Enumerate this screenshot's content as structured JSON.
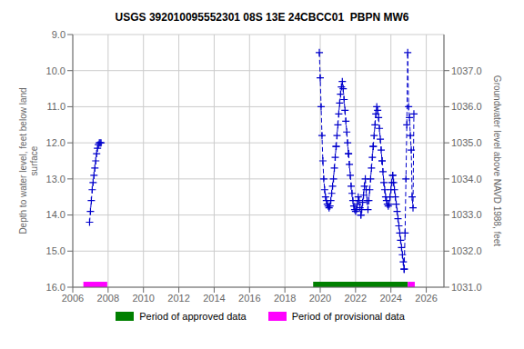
{
  "chart_data": {
    "type": "line",
    "title": "USGS 392010095552301 08S 13E 24CBCC01  PBPN MW6",
    "y_label": "Depth to water level, feet below land\nsurface",
    "y2_label": "Groundwater level above NAVD 1988, feet",
    "xlim": [
      2006,
      2027
    ],
    "xticks": [
      2006,
      2008,
      2010,
      2012,
      2014,
      2016,
      2018,
      2020,
      2022,
      2024,
      2026
    ],
    "ylim": [
      16.0,
      9.0
    ],
    "yticks": [
      {
        "value": 9.0,
        "label": "9.0"
      },
      {
        "value": 10.0,
        "label": "10.0"
      },
      {
        "value": 11.0,
        "label": "11.0"
      },
      {
        "value": 12.0,
        "label": "12.0"
      },
      {
        "value": 13.0,
        "label": "13.0"
      },
      {
        "value": 14.0,
        "label": "14.0"
      },
      {
        "value": 15.0,
        "label": "15.0"
      },
      {
        "value": 16.0,
        "label": "16.0"
      }
    ],
    "y2lim": [
      1031.0,
      1038.0
    ],
    "y2ticks": [
      {
        "value": 1031.0,
        "label": "1031.0"
      },
      {
        "value": 1032.0,
        "label": "1032.0"
      },
      {
        "value": 1033.0,
        "label": "1033.0"
      },
      {
        "value": 1034.0,
        "label": "1034.0"
      },
      {
        "value": 1035.0,
        "label": "1035.0"
      },
      {
        "value": 1036.0,
        "label": "1036.0"
      },
      {
        "value": 1037.0,
        "label": "1037.0"
      }
    ],
    "grid": true,
    "series": [
      {
        "color": "#0000cc",
        "line_style": "dashed",
        "marker": "plus",
        "x": [
          2006.95,
          2007.0,
          2007.05,
          2007.1,
          2007.15,
          2007.2,
          2007.25,
          2007.3,
          2007.35,
          2007.4,
          2007.45,
          2007.5,
          2007.55,
          2007.6
        ],
        "values": [
          14.2,
          13.9,
          13.6,
          13.3,
          13.1,
          12.9,
          12.7,
          12.5,
          12.3,
          12.15,
          12.05,
          12.0,
          12.0,
          12.0
        ]
      },
      {
        "color": "#0000cc",
        "line_style": "dashed",
        "marker": "plus",
        "x": [
          2019.95,
          2020.0,
          2020.05,
          2020.1,
          2020.15,
          2020.2,
          2020.25,
          2020.3,
          2020.35,
          2020.4,
          2020.45,
          2020.5,
          2020.55,
          2020.6,
          2020.65,
          2020.7,
          2020.75,
          2020.8,
          2020.85,
          2020.9
        ],
        "values": [
          9.5,
          10.2,
          11.0,
          11.8,
          12.5,
          13.0,
          13.3,
          13.5,
          13.6,
          13.7,
          13.75,
          13.8,
          13.75,
          13.6,
          13.4,
          13.2,
          13.0,
          12.7,
          12.4,
          12.1
        ]
      },
      {
        "color": "#0000cc",
        "line_style": "dashed",
        "marker": "plus",
        "x": [
          2020.9,
          2020.95,
          2021.0,
          2021.05,
          2021.1,
          2021.15,
          2021.2,
          2021.25,
          2021.3,
          2021.35,
          2021.4,
          2021.45,
          2021.5,
          2021.55,
          2021.6
        ],
        "values": [
          12.1,
          11.8,
          11.5,
          11.2,
          10.9,
          10.65,
          10.45,
          10.3,
          10.5,
          10.8,
          11.1,
          11.4,
          11.7,
          12.0,
          12.3
        ]
      },
      {
        "color": "#0000cc",
        "line_style": "dashed",
        "marker": "plus",
        "x": [
          2021.6,
          2021.65,
          2021.7,
          2021.75,
          2021.8,
          2021.85,
          2021.9,
          2021.95,
          2022.0,
          2022.05,
          2022.1,
          2022.15,
          2022.2,
          2022.25,
          2022.3
        ],
        "values": [
          12.3,
          12.6,
          12.9,
          13.2,
          13.4,
          13.6,
          13.75,
          13.85,
          13.9,
          13.85,
          13.7,
          13.5,
          13.6,
          13.8,
          14.0
        ]
      },
      {
        "color": "#0000cc",
        "line_style": "dashed",
        "marker": "plus",
        "x": [
          2022.3,
          2022.35,
          2022.4,
          2022.45,
          2022.5,
          2022.55,
          2022.6,
          2022.65,
          2022.7,
          2022.75,
          2022.8,
          2022.85,
          2022.9,
          2022.95,
          2023.0
        ],
        "values": [
          14.0,
          13.85,
          13.65,
          13.45,
          13.2,
          13.0,
          13.3,
          13.6,
          13.85,
          13.6,
          13.3,
          13.0,
          12.7,
          12.4,
          12.1
        ]
      },
      {
        "color": "#0000cc",
        "line_style": "dashed",
        "marker": "plus",
        "x": [
          2023.0,
          2023.05,
          2023.1,
          2023.15,
          2023.2,
          2023.25,
          2023.3,
          2023.35,
          2023.4,
          2023.45,
          2023.5
        ],
        "values": [
          12.1,
          11.8,
          11.5,
          11.2,
          11.0,
          11.1,
          11.3,
          11.6,
          11.9,
          12.2,
          12.5
        ]
      },
      {
        "color": "#0000cc",
        "line_style": "dashed",
        "marker": "plus",
        "x": [
          2023.5,
          2023.55,
          2023.6,
          2023.65,
          2023.7,
          2023.75,
          2023.8,
          2023.85,
          2023.9,
          2023.95,
          2024.0,
          2024.05,
          2024.1
        ],
        "values": [
          12.5,
          12.8,
          13.1,
          13.3,
          13.5,
          13.6,
          13.7,
          13.75,
          13.7,
          13.5,
          13.3,
          13.1,
          12.9
        ]
      },
      {
        "color": "#0000cc",
        "line_style": "dashed",
        "marker": "plus",
        "x": [
          2024.1,
          2024.15,
          2024.2,
          2024.25,
          2024.3,
          2024.35,
          2024.4,
          2024.45,
          2024.5,
          2024.55,
          2024.6,
          2024.65,
          2024.7,
          2024.75
        ],
        "values": [
          12.9,
          13.1,
          13.3,
          13.5,
          13.7,
          13.9,
          14.1,
          14.3,
          14.5,
          14.7,
          14.9,
          15.1,
          15.3,
          15.5
        ]
      },
      {
        "color": "#0000cc",
        "line_style": "dashed",
        "marker": "plus",
        "x": [
          2024.75,
          2024.8,
          2024.85,
          2024.9,
          2024.95,
          2025.0,
          2025.05,
          2025.1,
          2025.15,
          2025.2,
          2025.25,
          2025.3
        ],
        "values": [
          15.5,
          14.5,
          13.0,
          11.5,
          9.5,
          11.0,
          11.3,
          11.8,
          12.2,
          13.5,
          13.8,
          11.2
        ]
      }
    ],
    "periods": [
      {
        "name": "Period of approved data",
        "color": "#008000",
        "ranges": [
          [
            2019.6,
            2024.95
          ]
        ]
      },
      {
        "name": "Period of provisional data",
        "color": "#ff00ff",
        "ranges": [
          [
            2006.6,
            2007.95
          ],
          [
            2024.95,
            2025.35
          ]
        ]
      }
    ],
    "period_y": 16.0,
    "period_half_height": 0.15
  }
}
